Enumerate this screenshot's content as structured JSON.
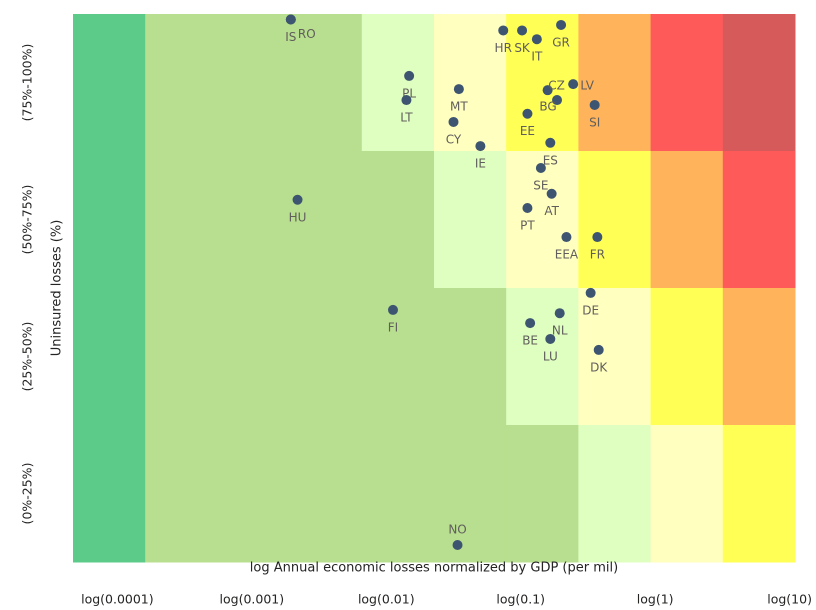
{
  "chart_data": {
    "type": "scatter",
    "x_label": "log Annual economic losses normalized by GDP (per mil)",
    "y_label": "Uninsured losses (%)",
    "point_labels": [
      "IS",
      "RO",
      "HR",
      "SK",
      "IT",
      "GR",
      "LV",
      "CZ",
      "BG",
      "EE",
      "SI",
      "PL",
      "MT",
      "LT",
      "CY",
      "IE",
      "ES",
      "SE",
      "AT",
      "PT",
      "EEA",
      "FR",
      "HU",
      "FI",
      "DE",
      "NL",
      "BE",
      "LU",
      "DK",
      "NO"
    ],
    "x": [
      -2.71,
      -2.71,
      -1.13,
      -0.99,
      -0.88,
      -0.7,
      -0.61,
      -0.8,
      -0.73,
      -0.95,
      -0.45,
      -1.83,
      -1.46,
      -1.85,
      -1.5,
      -1.3,
      -0.78,
      -0.85,
      -0.77,
      -0.95,
      -0.66,
      -0.43,
      -2.66,
      -1.95,
      -0.48,
      -0.71,
      -0.93,
      -0.78,
      -0.42,
      -1.47
    ],
    "values": [
      99,
      99,
      97,
      97,
      95.4,
      98,
      87.2,
      86.1,
      84.3,
      81.8,
      83.4,
      88.7,
      86.3,
      84.3,
      80.3,
      75.9,
      76.5,
      71.9,
      67.2,
      64.6,
      59.3,
      59.3,
      66.1,
      46,
      49.1,
      45.4,
      43.6,
      40.7,
      38.7,
      3.1
    ],
    "color": "#3d5570",
    "xlim": [
      -4.33,
      1.04
    ],
    "ylim": [
      0,
      100
    ],
    "xticks": [
      {
        "value": -4,
        "label": "log(0.0001)"
      },
      {
        "value": -3,
        "label": "log(0.001)"
      },
      {
        "value": -2,
        "label": "log(0.01)"
      },
      {
        "value": -1,
        "label": "log(0.1)"
      },
      {
        "value": 0,
        "label": "log(1)"
      },
      {
        "value": 1,
        "label": "log(10)"
      }
    ],
    "yticks": [
      {
        "value": 12.5,
        "label": "(0%-25%)"
      },
      {
        "value": 37.5,
        "label": "(25%-50%)"
      },
      {
        "value": 62.5,
        "label": "(50%-75%)"
      },
      {
        "value": 87.5,
        "label": "(75%-100%)"
      }
    ],
    "cell_colors": [
      [
        "#5ccb8a",
        "#b8df8f",
        "#b8df8f",
        "#b8df8f",
        "#dfffc0",
        "#ffffc0",
        "#ffff55",
        "#ffb35a",
        "#ff5a5a",
        "#d65a5a"
      ],
      [
        "#5ccb8a",
        "#b8df8f",
        "#b8df8f",
        "#b8df8f",
        "#b8df8f",
        "#dfffc0",
        "#ffffc0",
        "#ffff55",
        "#ffb35a",
        "#ff5a5a"
      ],
      [
        "#5ccb8a",
        "#b8df8f",
        "#b8df8f",
        "#b8df8f",
        "#b8df8f",
        "#b8df8f",
        "#dfffc0",
        "#ffffc0",
        "#ffff55",
        "#ffb35a"
      ],
      [
        "#5ccb8a",
        "#b8df8f",
        "#b8df8f",
        "#b8df8f",
        "#b8df8f",
        "#b8df8f",
        "#b8df8f",
        "#dfffc0",
        "#ffffc0",
        "#ffff55"
      ]
    ]
  }
}
